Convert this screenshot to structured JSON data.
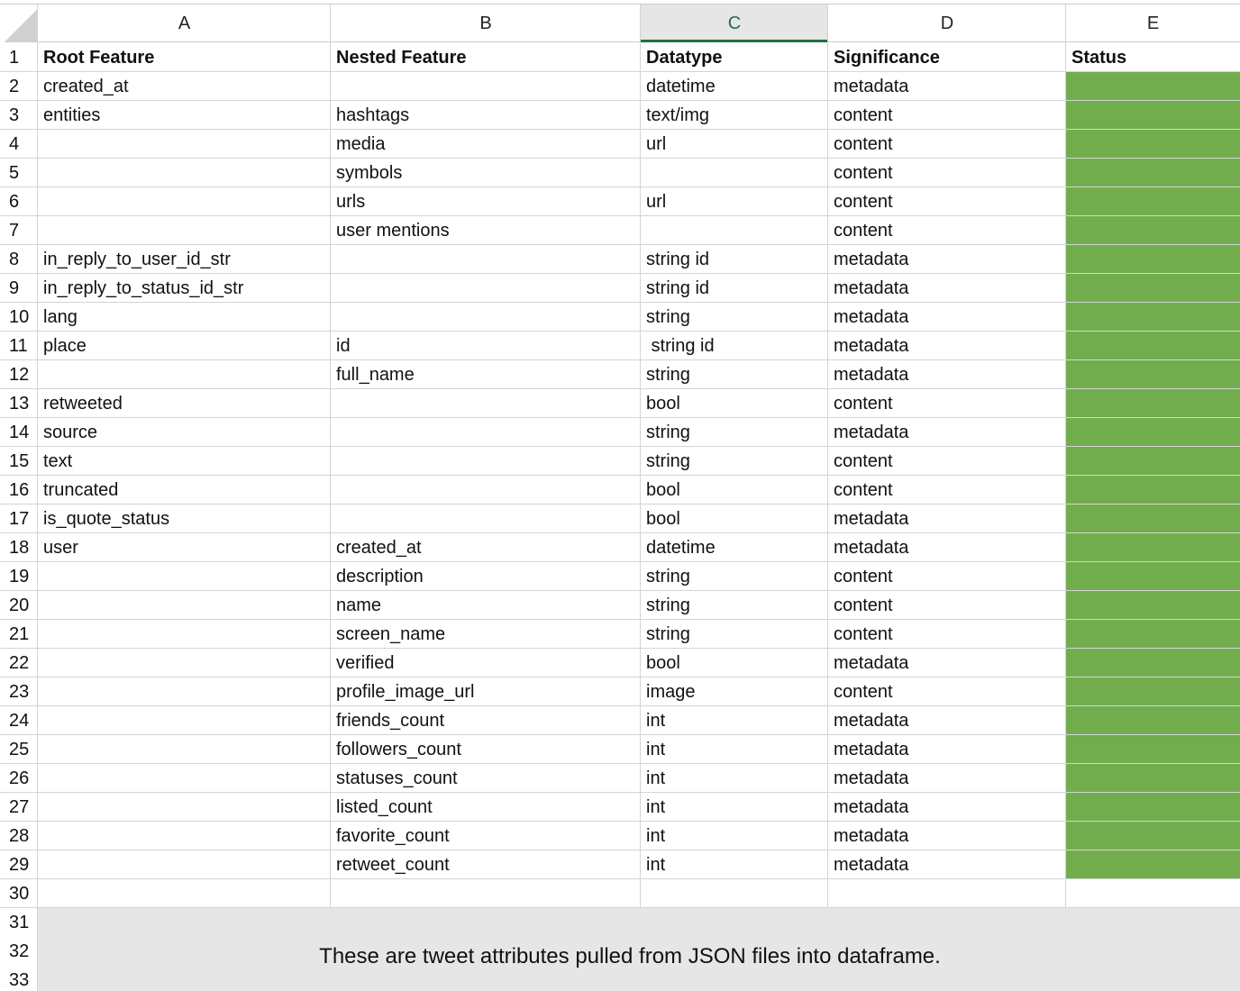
{
  "columns": [
    "A",
    "B",
    "C",
    "D",
    "E"
  ],
  "row_numbers": [
    1,
    2,
    3,
    4,
    5,
    6,
    7,
    8,
    9,
    10,
    11,
    12,
    13,
    14,
    15,
    16,
    17,
    18,
    19,
    20,
    21,
    22,
    23,
    24,
    25,
    26,
    27,
    28,
    29,
    30,
    31,
    32,
    33
  ],
  "table": {
    "header": [
      "Root Feature",
      "Nested Feature",
      "Datatype",
      "Significance",
      "Status"
    ],
    "rows": [
      [
        "created_at",
        null,
        "datetime",
        "metadata"
      ],
      [
        "entities",
        "hashtags",
        "text/img",
        "content"
      ],
      [
        null,
        "media",
        "url",
        "content"
      ],
      [
        null,
        "symbols",
        null,
        "content"
      ],
      [
        null,
        "urls",
        "url",
        "content"
      ],
      [
        null,
        "user mentions",
        null,
        "content"
      ],
      [
        "in_reply_to_user_id_str",
        null,
        "string id",
        "metadata"
      ],
      [
        "in_reply_to_status_id_str",
        null,
        "string id",
        "metadata"
      ],
      [
        "lang",
        null,
        "string",
        "metadata"
      ],
      [
        "place",
        "id",
        " string id",
        "metadata"
      ],
      [
        null,
        "full_name",
        "string",
        "metadata"
      ],
      [
        "retweeted",
        null,
        "bool",
        "content"
      ],
      [
        "source",
        null,
        "string",
        "metadata"
      ],
      [
        "text",
        null,
        "string",
        "content"
      ],
      [
        "truncated",
        null,
        "bool",
        "content"
      ],
      [
        "is_quote_status",
        null,
        "bool",
        "metadata"
      ],
      [
        "user",
        "created_at",
        "datetime",
        "metadata"
      ],
      [
        null,
        "description",
        "string",
        "content"
      ],
      [
        null,
        "name",
        "string",
        "content"
      ],
      [
        null,
        "screen_name",
        "string",
        "content"
      ],
      [
        null,
        "verified",
        "bool",
        "metadata"
      ],
      [
        null,
        "profile_image_url",
        "image",
        "content"
      ],
      [
        null,
        "friends_count",
        "int",
        "metadata"
      ],
      [
        null,
        "followers_count",
        "int",
        "metadata"
      ],
      [
        null,
        "statuses_count",
        "int",
        "metadata"
      ],
      [
        null,
        "listed_count",
        "int",
        "metadata"
      ],
      [
        null,
        "favorite_count",
        "int",
        "metadata"
      ],
      [
        null,
        "retweet_count",
        "int",
        "metadata"
      ]
    ]
  },
  "note": "These are tweet attributes pulled from JSON files into dataframe."
}
